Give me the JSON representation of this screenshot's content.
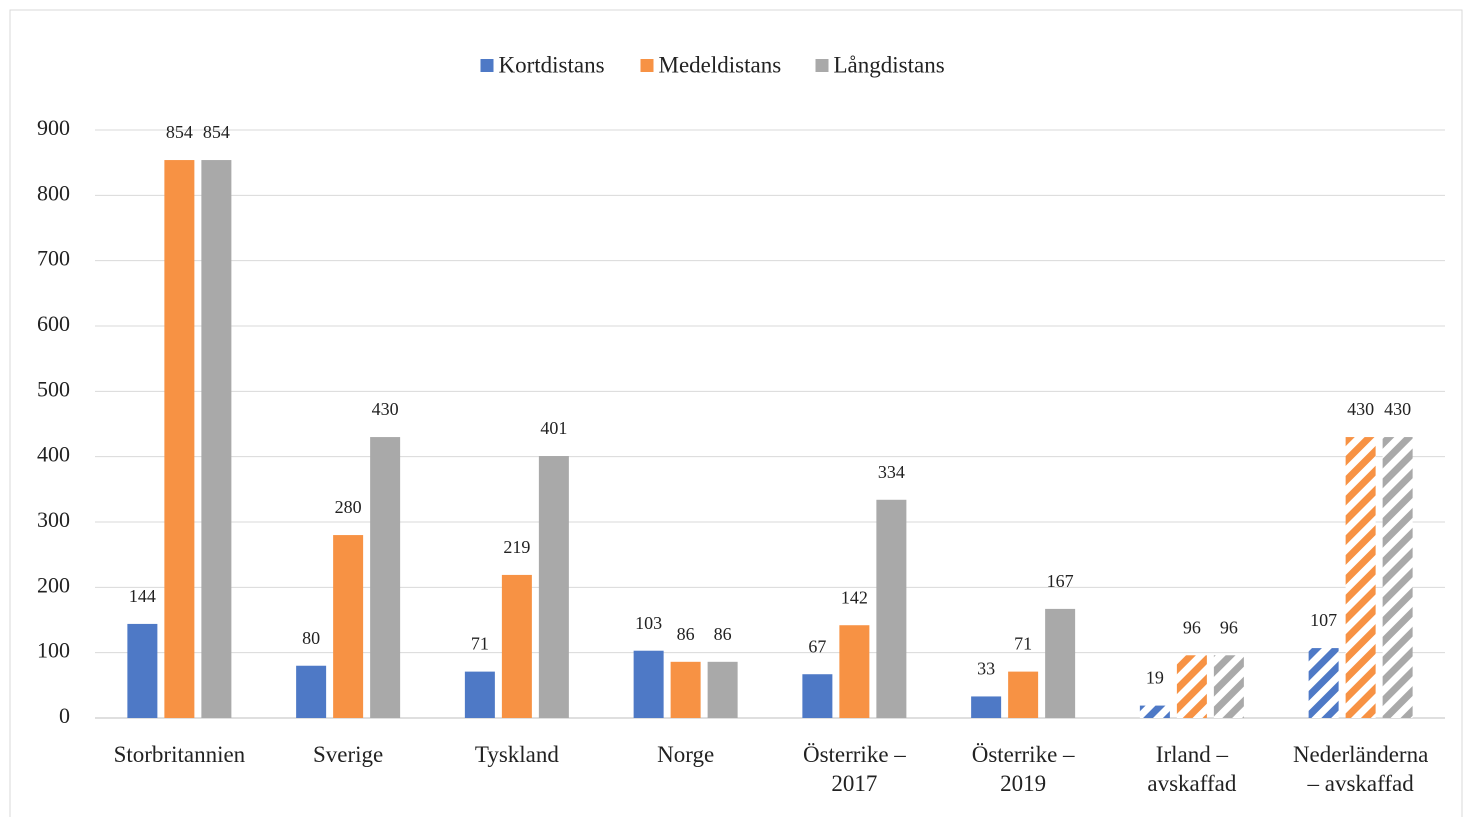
{
  "chart_data": {
    "type": "bar",
    "categories": [
      "Storbritannien",
      "Sverige",
      "Tyskland",
      "Norge",
      "Österrike –\n2017",
      "Österrike –\n2019",
      "Irland –\navskaffad",
      "Nederländerna\n– avskaffad"
    ],
    "series": [
      {
        "name": "Kortdistans",
        "color": "#4e79c6",
        "values": [
          144,
          80,
          71,
          103,
          67,
          33,
          19,
          107
        ]
      },
      {
        "name": "Medeldistans",
        "color": "#f79244",
        "values": [
          854,
          280,
          219,
          86,
          142,
          71,
          96,
          430
        ]
      },
      {
        "name": "Långdistans",
        "color": "#a9a9a9",
        "values": [
          854,
          430,
          401,
          86,
          334,
          167,
          96,
          430
        ]
      }
    ],
    "hatched": [
      false,
      false,
      false,
      false,
      false,
      false,
      true,
      true
    ],
    "ylim": [
      0,
      900
    ],
    "yticks": [
      0,
      100,
      200,
      300,
      400,
      500,
      600,
      700,
      800,
      900
    ],
    "grid": true,
    "legend": "top"
  }
}
